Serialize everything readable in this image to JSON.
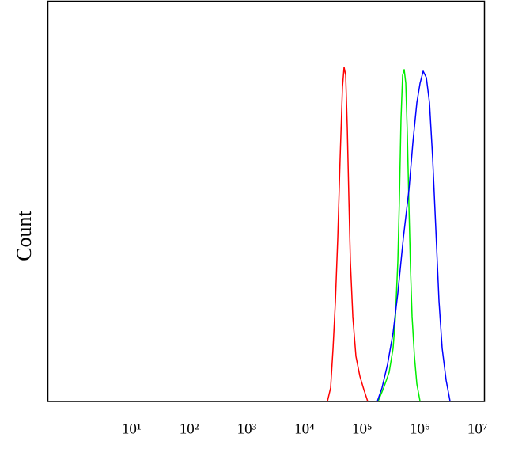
{
  "chart_data": {
    "type": "line",
    "y_label": "Count",
    "x_log": true,
    "xlim": [
      0.35,
      13000000
    ],
    "ylim": [
      0,
      100
    ],
    "xticks": [
      {
        "value": 10,
        "label": "10¹"
      },
      {
        "value": 100,
        "label": "10²"
      },
      {
        "value": 1000,
        "label": "10³"
      },
      {
        "value": 10000,
        "label": "10⁴"
      },
      {
        "value": 100000,
        "label": "10⁵"
      },
      {
        "value": 1000000,
        "label": "10⁶"
      },
      {
        "value": 10000000,
        "label": "10⁷"
      }
    ],
    "series": [
      {
        "color": "#ff0000",
        "x": [
          25000,
          28400,
          31300,
          34400,
          37800,
          41500,
          45600,
          48600,
          51800,
          55200,
          58800,
          62500,
          68900,
          78000,
          91400,
          107000,
          125000
        ],
        "values": [
          0,
          3.4,
          13.3,
          25.1,
          41,
          60.8,
          78.6,
          83.6,
          81.6,
          68.7,
          50.9,
          35,
          21.2,
          11.3,
          6.3,
          3,
          0
        ]
      },
      {
        "color": "#00ee00",
        "x": [
          189000,
          236000,
          294000,
          344000,
          378000,
          416000,
          443000,
          472000,
          503000,
          536000,
          571000,
          608000,
          648000,
          690000,
          735000,
          807000,
          888000,
          1010000
        ],
        "values": [
          0,
          3.4,
          7.3,
          13.3,
          21.2,
          35,
          50.9,
          70.7,
          81.6,
          83,
          79.6,
          66.7,
          48.9,
          33.1,
          21.2,
          11.3,
          4.4,
          0
        ]
      },
      {
        "color": "#0000ff",
        "x": [
          183000,
          221000,
          276000,
          344000,
          416000,
          519000,
          648000,
          759000,
          888000,
          1010000,
          1143000,
          1297000,
          1472000,
          1670000,
          1895000,
          2150000,
          2440000,
          2860000,
          3350000
        ],
        "values": [
          0,
          3.4,
          9.3,
          17.2,
          27.1,
          41,
          52.9,
          64.8,
          74.7,
          79.6,
          82.6,
          81,
          74.7,
          60.8,
          43.1,
          25.1,
          13.3,
          5.3,
          0
        ]
      }
    ]
  }
}
